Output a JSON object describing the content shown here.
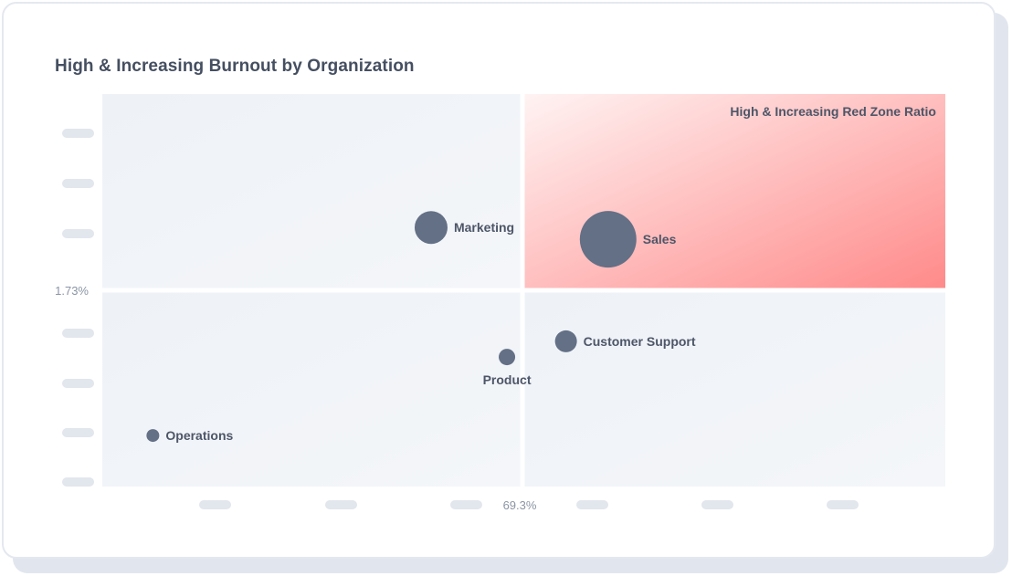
{
  "title": "High & Increasing Burnout by Organization",
  "colors": {
    "bubble": "#637086",
    "zone_light": "#fff1f1",
    "zone_dark": "#ff8b8b",
    "quadrant": "#f1f4f8",
    "tick_placeholder": "#e2e6ed"
  },
  "chart_data": {
    "type": "scatter",
    "title": "High & Increasing Burnout by Organization",
    "xlabel": "",
    "ylabel": "",
    "x_reference": {
      "value": 69.3,
      "label": "69.3%"
    },
    "y_reference": {
      "value": 1.73,
      "label": "1.73%"
    },
    "highlight_zone": {
      "label": "High & Increasing Red Zone Ratio",
      "quadrant": "top-right"
    },
    "x_tick_count": 7,
    "y_tick_count": 8,
    "points": [
      {
        "name": "Marketing",
        "x": 0.39,
        "y": 0.66,
        "size": 18,
        "label_pos": "right"
      },
      {
        "name": "Sales",
        "x": 0.6,
        "y": 0.63,
        "size": 31,
        "label_pos": "right"
      },
      {
        "name": "Customer Support",
        "x": 0.55,
        "y": 0.37,
        "size": 12,
        "label_pos": "right"
      },
      {
        "name": "Product",
        "x": 0.48,
        "y": 0.33,
        "size": 9,
        "label_pos": "below"
      },
      {
        "name": "Operations",
        "x": 0.06,
        "y": 0.13,
        "size": 7,
        "label_pos": "right"
      }
    ]
  }
}
